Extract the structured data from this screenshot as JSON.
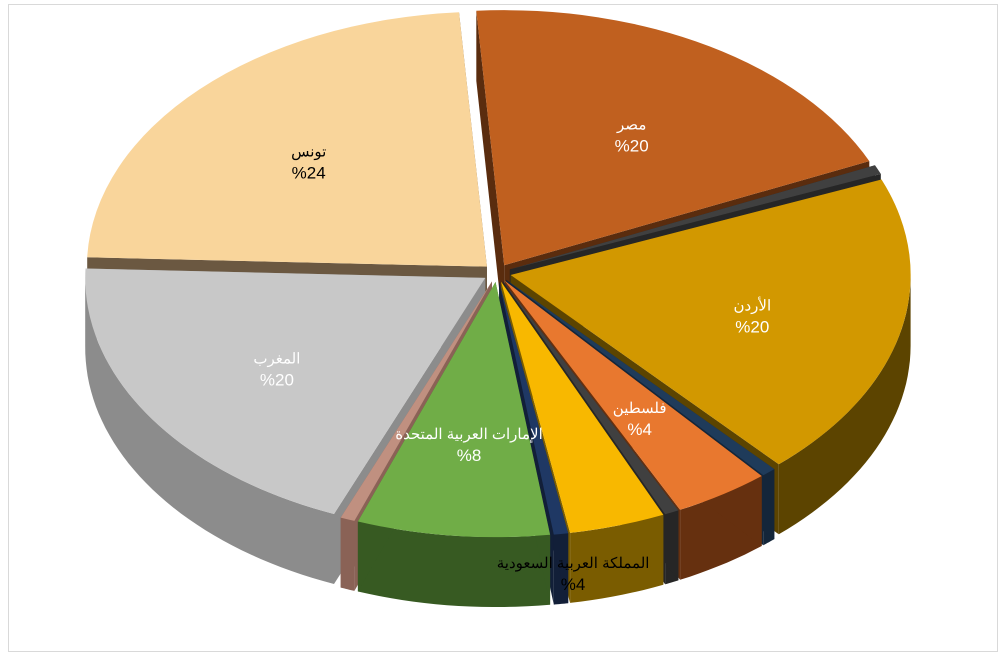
{
  "chart_data": {
    "type": "pie",
    "style": "3d-exploded",
    "slices": [
      {
        "label": "مصر",
        "value_label": "%20",
        "value": 20,
        "color": "#c0601f",
        "side": "#5a2c0e"
      },
      {
        "label": "",
        "value_label": "",
        "value": 0.6,
        "color": "#404040",
        "side": "#262626"
      },
      {
        "label": "الأردن",
        "value_label": "%20",
        "value": 20,
        "color": "#d29800",
        "side": "#5c4400"
      },
      {
        "label": "",
        "value_label": "",
        "value": 0.6,
        "color": "#1f3b5a",
        "side": "#14263a"
      },
      {
        "label": "فلسطين",
        "value_label": "%4",
        "value": 4,
        "color": "#e8782f",
        "side": "#66300f"
      },
      {
        "label": "",
        "value_label": "",
        "value": 0.6,
        "color": "#404040",
        "side": "#262626"
      },
      {
        "label": "المملكة العربية السعودية",
        "value_label": "%4",
        "value": 4,
        "color": "#f8b800",
        "side": "#7a5c00"
      },
      {
        "label": "",
        "value_label": "",
        "value": 0.6,
        "color": "#1f3864",
        "side": "#121f38"
      },
      {
        "label": "الإمارات العربية المتحدة",
        "value_label": "%8",
        "value": 8,
        "color": "#70ad47",
        "side": "#375a22"
      },
      {
        "label": "",
        "value_label": "",
        "value": 0.6,
        "color": "#c09080",
        "side": "#8a6256"
      },
      {
        "label": "المغرب",
        "value_label": "%20",
        "value": 20,
        "color": "#c8c8c8",
        "side": "#8c8c8c"
      },
      {
        "label": "تونس",
        "value_label": "%24",
        "value": 24,
        "color": "#f9d59b",
        "side": "#6b5841"
      }
    ]
  }
}
